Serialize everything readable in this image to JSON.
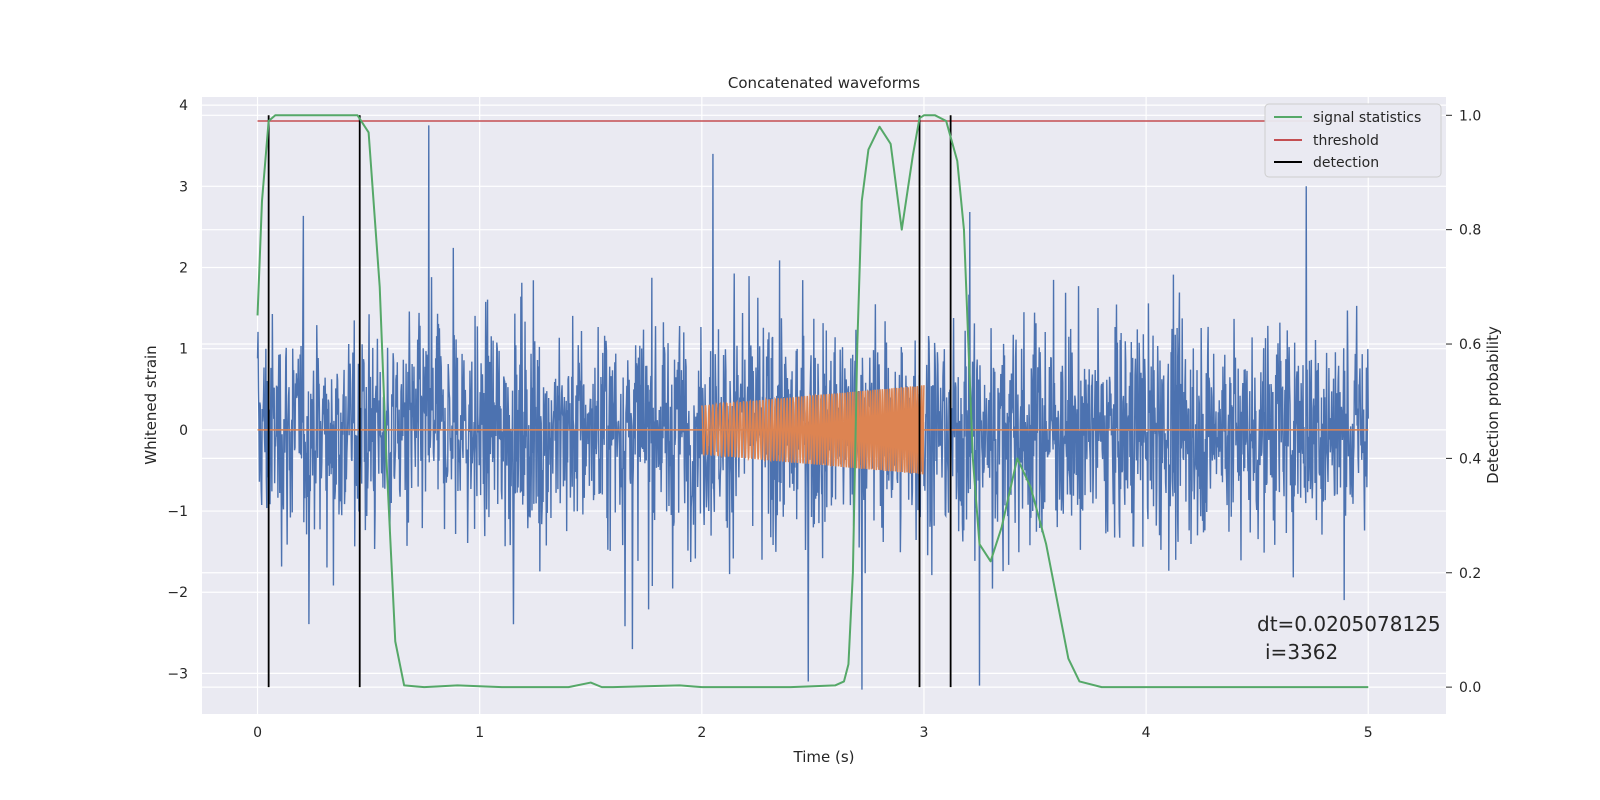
{
  "chart_data": {
    "type": "line",
    "title": "Concatenated waveforms",
    "xlabel": "Time (s)",
    "ylabel": "Whitened strain",
    "ylabel_right": "Detection probability",
    "xlim": [
      -0.25,
      5.35
    ],
    "ylim": [
      -3.5,
      4.1
    ],
    "ylim_right": [
      -0.047,
      1.032
    ],
    "xticks": [
      0,
      1,
      2,
      3,
      4,
      5
    ],
    "yticks": [
      -3,
      -2,
      -1,
      0,
      1,
      2,
      3,
      4
    ],
    "yticks_right": [
      0.0,
      0.2,
      0.4,
      0.6,
      0.8,
      1.0
    ],
    "grid": true,
    "legend_position": "top-right",
    "legend": [
      {
        "label": "signal statistics",
        "color": "#55a868"
      },
      {
        "label": "threshold",
        "color": "#c44e52"
      },
      {
        "label": "detection",
        "color": "#000000"
      }
    ],
    "noise": {
      "color": "#4c72b0",
      "x_range": [
        0,
        5
      ],
      "typical_amplitude": 1.3,
      "peaks": [
        {
          "x": 0.77,
          "y": 3.75
        },
        {
          "x": 4.72,
          "y": 3.0
        },
        {
          "x": 2.05,
          "y": 3.4
        },
        {
          "x": 2.48,
          "y": -3.1
        },
        {
          "x": 2.72,
          "y": -3.2
        },
        {
          "x": 3.25,
          "y": -3.15
        }
      ]
    },
    "injected_signal": {
      "color": "#dd8452",
      "x_range": [
        2.0,
        3.0
      ],
      "amplitude_start": 0.3,
      "amplitude_end": 0.55,
      "baseline": 0
    },
    "signal_statistics": {
      "color": "#55a868",
      "axis": "right",
      "x": [
        0.0,
        0.02,
        0.05,
        0.08,
        0.15,
        0.3,
        0.45,
        0.5,
        0.55,
        0.58,
        0.62,
        0.66,
        0.75,
        0.9,
        1.1,
        1.4,
        1.5,
        1.55,
        1.6,
        1.9,
        2.0,
        2.4,
        2.6,
        2.64,
        2.66,
        2.68,
        2.7,
        2.72,
        2.75,
        2.8,
        2.85,
        2.9,
        2.95,
        2.98,
        3.0,
        3.05,
        3.1,
        3.15,
        3.18,
        3.2,
        3.22,
        3.25,
        3.3,
        3.35,
        3.42,
        3.48,
        3.55,
        3.6,
        3.65,
        3.7,
        3.8,
        4.0,
        5.0
      ],
      "y": [
        0.65,
        0.85,
        0.99,
        1.0,
        1.0,
        1.0,
        1.0,
        0.97,
        0.7,
        0.4,
        0.08,
        0.003,
        0.0,
        0.003,
        0.0,
        0.0,
        0.008,
        0.0,
        0.0,
        0.003,
        0.0,
        0.0,
        0.003,
        0.01,
        0.04,
        0.2,
        0.6,
        0.85,
        0.94,
        0.98,
        0.95,
        0.8,
        0.93,
        0.995,
        1.0,
        1.0,
        0.99,
        0.92,
        0.8,
        0.6,
        0.4,
        0.25,
        0.22,
        0.28,
        0.4,
        0.35,
        0.25,
        0.15,
        0.05,
        0.01,
        0.0,
        0.0,
        0.0
      ]
    },
    "threshold": {
      "color": "#c44e52",
      "axis": "right",
      "value": 0.99,
      "x_range": [
        0,
        5
      ]
    },
    "detections": {
      "color": "#000000",
      "x": [
        0.05,
        0.46,
        2.98,
        3.12
      ],
      "axis_right_range": [
        0.0,
        1.0
      ]
    },
    "annotation": {
      "dt": "dt=0.0205078125",
      "i": "i=3362"
    }
  }
}
